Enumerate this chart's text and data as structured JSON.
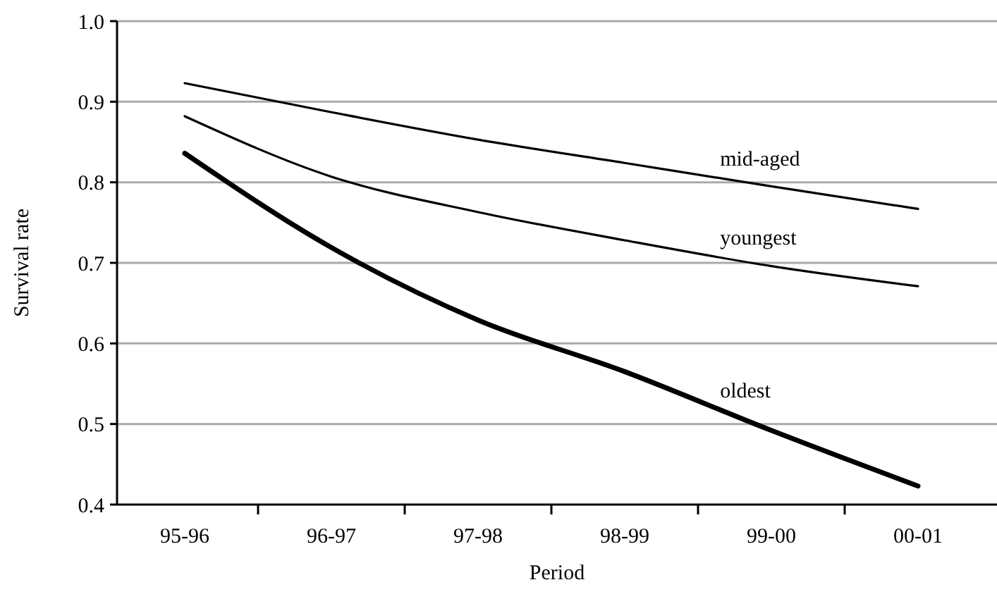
{
  "chart_data": {
    "type": "line",
    "xlabel": "Period",
    "ylabel": "Survival rate",
    "categories": [
      "95-96",
      "96-97",
      "97-98",
      "98-99",
      "99-00",
      "00-01"
    ],
    "series": [
      {
        "name": "mid-aged",
        "color": "#000000",
        "values": [
          0.923,
          0.887,
          0.853,
          0.824,
          0.795,
          0.767
        ]
      },
      {
        "name": "youngest",
        "color": "#000000",
        "values": [
          0.882,
          0.807,
          0.763,
          0.728,
          0.696,
          0.671
        ]
      },
      {
        "name": "oldest",
        "color": "#000000",
        "values": [
          0.836,
          0.719,
          0.629,
          0.565,
          0.492,
          0.423
        ]
      }
    ],
    "ylim": [
      0.4,
      1.0
    ],
    "yticks": [
      {
        "value": 0.4,
        "label": "0.4"
      },
      {
        "value": 0.5,
        "label": "0.5"
      },
      {
        "value": 0.6,
        "label": "0.6"
      },
      {
        "value": 0.7,
        "label": "0.7"
      },
      {
        "value": 0.8,
        "label": "0.8"
      },
      {
        "value": 0.9,
        "label": "0.9"
      },
      {
        "value": 1.0,
        "label": "1.0"
      }
    ],
    "grid": "y",
    "legend": false,
    "marker": "none",
    "line_style": "solid"
  }
}
